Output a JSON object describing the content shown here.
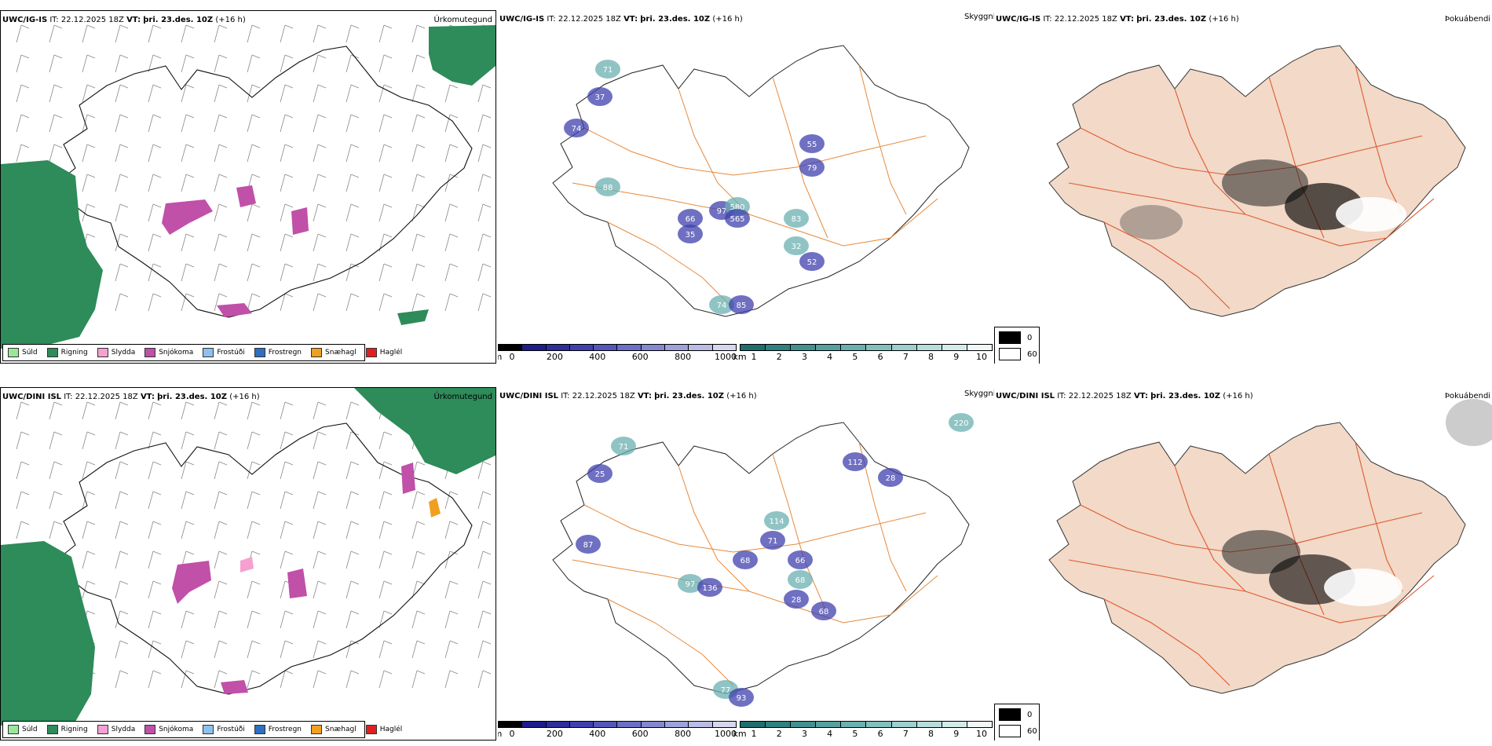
{
  "rows": [
    {
      "model_label": "UWC/IG-IS",
      "it_label": "IT:",
      "it_value": "22.12.2025 18Z",
      "vt_label": "VT:",
      "vt_value": "þri. 23.des. 10Z",
      "lead": "(+16 h)",
      "panels": {
        "precip": {
          "name": "Úrkomutegund"
        },
        "vis": {
          "name": "Skyggni",
          "labels": [
            "71",
            "37",
            "74",
            "88",
            "66",
            "97",
            "580",
            "35",
            "565",
            "83",
            "79",
            "52",
            "74",
            "85",
            "55",
            "32"
          ]
        },
        "fog": {
          "name": "Þokuábendi"
        }
      }
    },
    {
      "model_label": "UWC/DINI ISL",
      "it_label": "IT:",
      "it_value": "22.12.2025 18Z",
      "vt_label": "VT:",
      "vt_value": "þri. 23.des. 10Z",
      "lead": "(+16 h)",
      "panels": {
        "precip": {
          "name": "Úrkomutegund"
        },
        "vis": {
          "name": "Skyggni",
          "labels": [
            "220",
            "112",
            "28",
            "71",
            "25",
            "87",
            "97",
            "136",
            "68",
            "114",
            "71",
            "66",
            "68",
            "28",
            "68",
            "77",
            "93"
          ]
        },
        "fog": {
          "name": "Þokuábendi"
        }
      }
    }
  ],
  "precip_legend": [
    {
      "label": "Súld",
      "color": "#98e89a"
    },
    {
      "label": "Rigning",
      "color": "#2e8b5a"
    },
    {
      "label": "Slydda",
      "color": "#f5a0d0"
    },
    {
      "label": "Snjókoma",
      "color": "#c050a8"
    },
    {
      "label": "Frostúði",
      "color": "#8ec1ee"
    },
    {
      "label": "Frostregn",
      "color": "#2f6fc0"
    },
    {
      "label": "Snæhagl",
      "color": "#f0a020"
    },
    {
      "label": "Haglél",
      "color": "#e02020"
    }
  ],
  "ceiling_bar": {
    "unit": "m",
    "ticks": [
      "0",
      "200",
      "400",
      "600",
      "800",
      "1000"
    ],
    "colors": [
      "#000000",
      "#1c1c8a",
      "#2d2d9e",
      "#3f40ae",
      "#5456bb",
      "#6b6fc6",
      "#8488d0",
      "#9ea2da",
      "#b9bce4",
      "#d5d7ee"
    ]
  },
  "visibility_bar": {
    "unit": "km",
    "ticks": [
      "1",
      "2",
      "3",
      "4",
      "5",
      "6",
      "7",
      "8",
      "9",
      "10"
    ],
    "colors": [
      "#1e6e6e",
      "#2f8080",
      "#429090",
      "#56a0a0",
      "#6bb0b0",
      "#82c0bf",
      "#9ccfcd",
      "#b7dedb",
      "#d2ece9",
      "#f0f8f7"
    ]
  },
  "fog_legend": [
    {
      "label": "0",
      "fill": "#000000"
    },
    {
      "label": "60",
      "fill": "#ffffff"
    }
  ]
}
